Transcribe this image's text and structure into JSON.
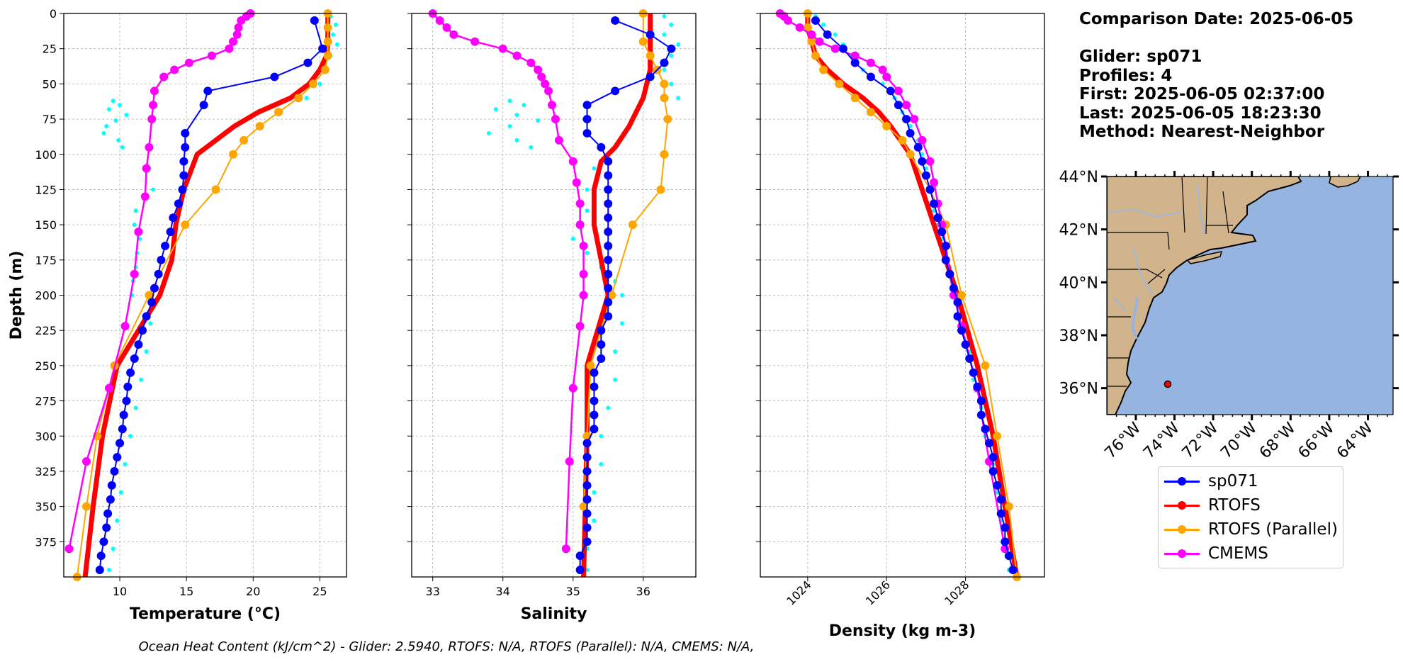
{
  "colors": {
    "glider": "#0000ff",
    "glider_raw": "#00ffff",
    "rtofs": "#ff0000",
    "rtofs_parallel": "#ffa500",
    "cmems": "#ff00ff",
    "ocean": "#95b4e0",
    "land": "#d2b48c",
    "rivers": "#9fb7d8",
    "grid": "#b0b0b0"
  },
  "info": {
    "comparison_date": "Comparison Date: 2025-06-05",
    "glider": "Glider: sp071",
    "profiles": "Profiles: 4",
    "first": "First: 2025-06-05 02:37:00",
    "last": "Last: 2025-06-05 18:23:30",
    "method": "Method: Nearest-Neighbor"
  },
  "legend": [
    {
      "name": "sp071",
      "color_key": "glider"
    },
    {
      "name": "RTOFS",
      "color_key": "rtofs"
    },
    {
      "name": "RTOFS (Parallel)",
      "color_key": "rtofs_parallel"
    },
    {
      "name": "CMEMS",
      "color_key": "cmems"
    }
  ],
  "footer": "Ocean Heat Content (kJ/cm^2) - Glider: 2.5940,  RTOFS: N/A,  RTOFS (Parallel): N/A,  CMEMS: N/A,",
  "chart_data": [
    {
      "type": "line",
      "xlabel": "Temperature (°C)",
      "ylabel": "Depth (m)",
      "xlim": [
        5.8,
        27
      ],
      "ylim": [
        400,
        0
      ],
      "xticks": [
        10,
        15,
        20,
        25
      ],
      "yticks": [
        0,
        25,
        50,
        75,
        100,
        125,
        150,
        175,
        200,
        225,
        250,
        275,
        300,
        325,
        350,
        375
      ],
      "grid": true,
      "series": [
        {
          "name": "sp071",
          "depth": [
            5,
            25,
            35,
            45,
            55,
            65,
            85,
            95,
            105,
            115,
            125,
            135,
            145,
            155,
            165,
            175,
            185,
            195,
            205,
            215,
            225,
            235,
            245,
            255,
            265,
            275,
            285,
            295,
            305,
            315,
            325,
            335,
            345,
            355,
            365,
            375,
            385,
            395
          ],
          "values": [
            24.6,
            25.2,
            24.1,
            21.6,
            16.6,
            16.3,
            14.9,
            14.9,
            14.8,
            14.8,
            14.7,
            14.4,
            14.0,
            13.8,
            13.4,
            13.1,
            12.9,
            12.6,
            12.4,
            12.0,
            11.7,
            11.4,
            11.1,
            10.8,
            10.6,
            10.5,
            10.3,
            10.2,
            10.0,
            9.8,
            9.6,
            9.4,
            9.3,
            9.1,
            9.0,
            8.8,
            8.6,
            8.5
          ]
        },
        {
          "name": "RTOFS",
          "depth": [
            0,
            10,
            20,
            30,
            40,
            50,
            60,
            70,
            80,
            90,
            100,
            125,
            150,
            175,
            200,
            250,
            300,
            350,
            400
          ],
          "values": [
            25.6,
            25.6,
            25.6,
            25.5,
            25.0,
            24.2,
            22.8,
            20.4,
            18.6,
            17.2,
            15.8,
            14.8,
            14.2,
            13.9,
            13.0,
            9.8,
            8.7,
            8.0,
            7.4
          ]
        },
        {
          "name": "RTOFS (Parallel)",
          "depth": [
            0,
            10,
            20,
            30,
            40,
            50,
            60,
            70,
            80,
            90,
            100,
            125,
            150,
            200,
            250,
            300,
            350,
            400
          ],
          "values": [
            25.6,
            25.6,
            25.6,
            25.6,
            25.4,
            24.5,
            23.4,
            21.9,
            20.5,
            19.3,
            18.5,
            17.2,
            14.9,
            12.2,
            9.6,
            8.3,
            7.5,
            6.8
          ]
        },
        {
          "name": "CMEMS",
          "depth": [
            0,
            2,
            5,
            10,
            15,
            20,
            25,
            30,
            35,
            40,
            45,
            55,
            65,
            75,
            95,
            110,
            130,
            155,
            185,
            222,
            266,
            318,
            380
          ],
          "values": [
            19.8,
            19.5,
            19.1,
            18.9,
            18.8,
            18.5,
            18.2,
            16.9,
            15.2,
            14.1,
            13.3,
            12.6,
            12.5,
            12.4,
            12.2,
            12.0,
            11.9,
            11.4,
            11.1,
            10.4,
            9.2,
            7.5,
            6.2
          ]
        },
        {
          "name": "glider raw",
          "depth": [
            2,
            8,
            15,
            22,
            30,
            40,
            50,
            60,
            62,
            65,
            68,
            72,
            76,
            80,
            85,
            90,
            95,
            110,
            125,
            140,
            150,
            160,
            170,
            180,
            190,
            200,
            220,
            240,
            260,
            280,
            300,
            320,
            340,
            360,
            380,
            395
          ],
          "values": [
            25.8,
            26.2,
            26.0,
            26.3,
            25.8,
            25.5,
            25.0,
            24.0,
            9.5,
            10.0,
            9.2,
            10.5,
            9.7,
            9.0,
            8.8,
            9.9,
            10.2,
            12.2,
            12.5,
            11.2,
            11.1,
            11.5,
            11.3,
            11.2,
            11.0,
            10.9,
            12.3,
            12.0,
            11.6,
            11.2,
            10.8,
            10.4,
            10.1,
            9.8,
            9.5,
            9.2
          ]
        }
      ]
    },
    {
      "type": "line",
      "xlabel": "Salinity",
      "ylabel": "",
      "xlim": [
        32.7,
        36.75
      ],
      "ylim": [
        400,
        0
      ],
      "xticks": [
        33,
        34,
        35,
        36
      ],
      "yticks": [
        0,
        25,
        50,
        75,
        100,
        125,
        150,
        175,
        200,
        225,
        250,
        275,
        300,
        325,
        350,
        375
      ],
      "grid": true,
      "series": [
        {
          "name": "sp071",
          "depth": [
            5,
            15,
            25,
            35,
            45,
            55,
            65,
            75,
            85,
            95,
            105,
            115,
            125,
            135,
            145,
            155,
            165,
            175,
            185,
            195,
            205,
            215,
            225,
            235,
            245,
            255,
            265,
            275,
            285,
            295,
            305,
            315,
            325,
            335,
            345,
            355,
            365,
            375,
            385,
            395
          ],
          "values": [
            35.6,
            36.1,
            36.4,
            36.3,
            36.1,
            35.6,
            35.2,
            35.2,
            35.2,
            35.4,
            35.5,
            35.5,
            35.5,
            35.5,
            35.5,
            35.5,
            35.5,
            35.5,
            35.5,
            35.5,
            35.5,
            35.5,
            35.4,
            35.4,
            35.4,
            35.3,
            35.3,
            35.3,
            35.3,
            35.3,
            35.2,
            35.2,
            35.2,
            35.2,
            35.2,
            35.2,
            35.2,
            35.2,
            35.1,
            35.1
          ]
        },
        {
          "name": "RTOFS",
          "depth": [
            0,
            20,
            40,
            60,
            80,
            95,
            105,
            125,
            150,
            175,
            200,
            250,
            300,
            400
          ],
          "values": [
            36.1,
            36.1,
            36.1,
            36.0,
            35.8,
            35.6,
            35.4,
            35.3,
            35.3,
            35.4,
            35.5,
            35.2,
            35.2,
            35.15
          ]
        },
        {
          "name": "RTOFS (Parallel)",
          "depth": [
            0,
            20,
            30,
            40,
            50,
            60,
            75,
            100,
            125,
            150,
            200,
            250,
            300,
            350
          ],
          "values": [
            36.0,
            36.0,
            36.1,
            36.2,
            36.3,
            36.3,
            36.35,
            36.3,
            36.25,
            35.85,
            35.55,
            35.25,
            35.2,
            35.15
          ]
        },
        {
          "name": "CMEMS",
          "depth": [
            0,
            5,
            10,
            15,
            20,
            25,
            30,
            35,
            40,
            45,
            50,
            55,
            65,
            75,
            90,
            105,
            120,
            135,
            150,
            165,
            185,
            200,
            222,
            266,
            318,
            380
          ],
          "values": [
            33.0,
            33.1,
            33.2,
            33.3,
            33.6,
            34.0,
            34.2,
            34.4,
            34.5,
            34.55,
            34.6,
            34.65,
            34.7,
            34.75,
            34.8,
            35.0,
            35.05,
            35.1,
            35.1,
            35.15,
            35.15,
            35.15,
            35.1,
            35.0,
            34.95,
            34.9
          ]
        },
        {
          "name": "glider raw",
          "depth": [
            2,
            8,
            15,
            22,
            30,
            40,
            50,
            60,
            62,
            65,
            68,
            72,
            76,
            80,
            85,
            90,
            95,
            110,
            125,
            140,
            150,
            160,
            170,
            180,
            190,
            200,
            220,
            240,
            260,
            280,
            300,
            320,
            340,
            360,
            380,
            395
          ],
          "values": [
            36.3,
            36.4,
            36.3,
            36.5,
            36.4,
            36.3,
            36.4,
            36.5,
            34.1,
            34.3,
            33.9,
            34.2,
            34.5,
            34.1,
            33.8,
            34.2,
            34.4,
            35.3,
            35.2,
            35.2,
            35.1,
            35.0,
            35.2,
            35.4,
            35.6,
            35.7,
            35.7,
            35.6,
            35.6,
            35.5,
            35.4,
            35.4,
            35.3,
            35.3,
            35.2,
            35.2
          ]
        }
      ]
    },
    {
      "type": "line",
      "xlabel": "Density (kg m-3)",
      "ylabel": "",
      "xlim": [
        1022.8,
        1030.0
      ],
      "ylim": [
        400,
        0
      ],
      "xticks": [
        1024,
        1026,
        1028
      ],
      "yticks": [
        0,
        25,
        50,
        75,
        100,
        125,
        150,
        175,
        200,
        225,
        250,
        275,
        300,
        325,
        350,
        375
      ],
      "grid": true,
      "series": [
        {
          "name": "sp071",
          "depth": [
            5,
            15,
            25,
            35,
            45,
            55,
            65,
            75,
            85,
            95,
            105,
            115,
            125,
            135,
            145,
            155,
            165,
            175,
            185,
            195,
            205,
            215,
            225,
            235,
            245,
            255,
            265,
            275,
            285,
            295,
            305,
            315,
            325,
            335,
            345,
            355,
            365,
            375,
            385,
            395
          ],
          "values": [
            1024.2,
            1024.5,
            1024.9,
            1025.2,
            1025.6,
            1026.1,
            1026.3,
            1026.5,
            1026.6,
            1026.8,
            1026.9,
            1027.0,
            1027.1,
            1027.2,
            1027.3,
            1027.4,
            1027.5,
            1027.5,
            1027.6,
            1027.7,
            1027.8,
            1027.8,
            1027.9,
            1028.0,
            1028.1,
            1028.2,
            1028.3,
            1028.4,
            1028.4,
            1028.5,
            1028.6,
            1028.7,
            1028.7,
            1028.8,
            1028.9,
            1028.9,
            1029.0,
            1029.0,
            1029.1,
            1029.2
          ]
        },
        {
          "name": "RTOFS",
          "depth": [
            0,
            10,
            20,
            30,
            40,
            50,
            60,
            70,
            80,
            100,
            150,
            200,
            250,
            300,
            350,
            400
          ],
          "values": [
            1024.0,
            1024.0,
            1024.1,
            1024.2,
            1024.5,
            1024.9,
            1025.4,
            1025.8,
            1026.1,
            1026.6,
            1027.2,
            1027.8,
            1028.3,
            1028.7,
            1029.0,
            1029.3
          ]
        },
        {
          "name": "RTOFS (Parallel)",
          "depth": [
            0,
            10,
            20,
            30,
            40,
            50,
            60,
            70,
            80,
            90,
            100,
            125,
            150,
            200,
            250,
            300,
            350,
            400
          ],
          "values": [
            1024.0,
            1024.0,
            1024.1,
            1024.2,
            1024.4,
            1024.8,
            1025.2,
            1025.6,
            1026.0,
            1026.4,
            1026.6,
            1027.1,
            1027.5,
            1027.9,
            1028.5,
            1028.8,
            1029.1,
            1029.3
          ]
        },
        {
          "name": "CMEMS",
          "depth": [
            0,
            2,
            5,
            10,
            15,
            20,
            25,
            30,
            35,
            40,
            45,
            55,
            65,
            75,
            90,
            105,
            120,
            135,
            150,
            165,
            185,
            200,
            222,
            266,
            318,
            380
          ],
          "values": [
            1023.3,
            1023.4,
            1023.5,
            1023.8,
            1024.1,
            1024.3,
            1024.7,
            1025.2,
            1025.6,
            1025.9,
            1026.0,
            1026.3,
            1026.5,
            1026.7,
            1026.9,
            1027.1,
            1027.2,
            1027.3,
            1027.4,
            1027.5,
            1027.6,
            1027.7,
            1027.9,
            1028.3,
            1028.6,
            1029.0
          ]
        },
        {
          "name": "glider raw",
          "depth": [
            2,
            8,
            15,
            22,
            30,
            40,
            50,
            60,
            70,
            80,
            90,
            100,
            110,
            125,
            140,
            150,
            160,
            170,
            180,
            190,
            200,
            220,
            240,
            260,
            280,
            300,
            320,
            340,
            360,
            380,
            395
          ],
          "values": [
            1024.2,
            1024.4,
            1024.7,
            1024.9,
            1025.1,
            1025.4,
            1025.9,
            1026.2,
            1026.4,
            1026.6,
            1026.8,
            1026.9,
            1027.0,
            1027.1,
            1027.2,
            1027.3,
            1027.4,
            1027.5,
            1027.6,
            1027.7,
            1027.7,
            1027.9,
            1028.1,
            1028.2,
            1028.4,
            1028.5,
            1028.7,
            1028.8,
            1028.9,
            1029.0,
            1029.1
          ]
        }
      ]
    },
    {
      "type": "map",
      "lat_range": [
        35,
        44
      ],
      "lon_range": [
        -77.5,
        -62.7
      ],
      "lat_ticks": [
        "44°N",
        "42°N",
        "40°N",
        "38°N",
        "36°N"
      ],
      "lon_ticks": [
        "76°W",
        "74°W",
        "72°W",
        "70°W",
        "68°W",
        "66°W",
        "64°W"
      ],
      "glider_position": {
        "lat": 36.2,
        "lon": -74.0
      }
    }
  ]
}
